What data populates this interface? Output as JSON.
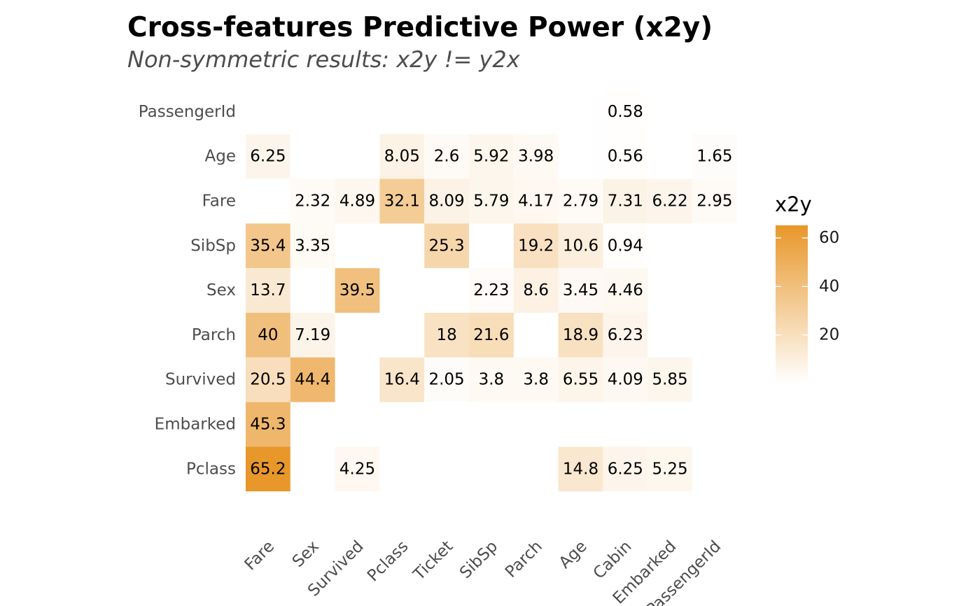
{
  "chart_data": {
    "type": "heatmap",
    "title": "Cross-features Predictive Power (x2y)",
    "subtitle": "Non-symmetric results: x2y != y2x",
    "x_categories": [
      "Fare",
      "Sex",
      "Survived",
      "Pclass",
      "Ticket",
      "SibSp",
      "Parch",
      "Age",
      "Cabin",
      "Embarked",
      "PassengerId"
    ],
    "y_categories": [
      "PassengerId",
      "Age",
      "Fare",
      "SibSp",
      "Sex",
      "Parch",
      "Survived",
      "Embarked",
      "Pclass"
    ],
    "cells": [
      {
        "x": "Cabin",
        "y": "PassengerId",
        "value": 0.58,
        "label": "0.58"
      },
      {
        "x": "Fare",
        "y": "Age",
        "value": 6.25,
        "label": "6.25"
      },
      {
        "x": "Pclass",
        "y": "Age",
        "value": 8.05,
        "label": "8.05"
      },
      {
        "x": "Ticket",
        "y": "Age",
        "value": 2.6,
        "label": "2.6"
      },
      {
        "x": "SibSp",
        "y": "Age",
        "value": 5.92,
        "label": "5.92"
      },
      {
        "x": "Parch",
        "y": "Age",
        "value": 3.98,
        "label": "3.98"
      },
      {
        "x": "Cabin",
        "y": "Age",
        "value": 0.56,
        "label": "0.56"
      },
      {
        "x": "PassengerId",
        "y": "Age",
        "value": 1.65,
        "label": "1.65"
      },
      {
        "x": "Sex",
        "y": "Fare",
        "value": 2.32,
        "label": "2.32"
      },
      {
        "x": "Survived",
        "y": "Fare",
        "value": 4.89,
        "label": "4.89"
      },
      {
        "x": "Pclass",
        "y": "Fare",
        "value": 32.1,
        "label": "32.1"
      },
      {
        "x": "Ticket",
        "y": "Fare",
        "value": 8.09,
        "label": "8.09"
      },
      {
        "x": "SibSp",
        "y": "Fare",
        "value": 5.79,
        "label": "5.79"
      },
      {
        "x": "Parch",
        "y": "Fare",
        "value": 4.17,
        "label": "4.17"
      },
      {
        "x": "Age",
        "y": "Fare",
        "value": 2.79,
        "label": "2.79"
      },
      {
        "x": "Cabin",
        "y": "Fare",
        "value": 7.31,
        "label": "7.31"
      },
      {
        "x": "Embarked",
        "y": "Fare",
        "value": 6.22,
        "label": "6.22"
      },
      {
        "x": "PassengerId",
        "y": "Fare",
        "value": 2.95,
        "label": "2.95"
      },
      {
        "x": "Fare",
        "y": "SibSp",
        "value": 35.4,
        "label": "35.4"
      },
      {
        "x": "Sex",
        "y": "SibSp",
        "value": 3.35,
        "label": "3.35"
      },
      {
        "x": "Ticket",
        "y": "SibSp",
        "value": 25.3,
        "label": "25.3"
      },
      {
        "x": "Parch",
        "y": "SibSp",
        "value": 19.2,
        "label": "19.2"
      },
      {
        "x": "Age",
        "y": "SibSp",
        "value": 10.6,
        "label": "10.6"
      },
      {
        "x": "Cabin",
        "y": "SibSp",
        "value": 0.94,
        "label": "0.94"
      },
      {
        "x": "Fare",
        "y": "Sex",
        "value": 13.7,
        "label": "13.7"
      },
      {
        "x": "Survived",
        "y": "Sex",
        "value": 39.5,
        "label": "39.5"
      },
      {
        "x": "SibSp",
        "y": "Sex",
        "value": 2.23,
        "label": "2.23"
      },
      {
        "x": "Parch",
        "y": "Sex",
        "value": 8.6,
        "label": "8.6"
      },
      {
        "x": "Age",
        "y": "Sex",
        "value": 3.45,
        "label": "3.45"
      },
      {
        "x": "Cabin",
        "y": "Sex",
        "value": 4.46,
        "label": "4.46"
      },
      {
        "x": "Fare",
        "y": "Parch",
        "value": 40,
        "label": "40"
      },
      {
        "x": "Sex",
        "y": "Parch",
        "value": 7.19,
        "label": "7.19"
      },
      {
        "x": "Ticket",
        "y": "Parch",
        "value": 18,
        "label": "18"
      },
      {
        "x": "SibSp",
        "y": "Parch",
        "value": 21.6,
        "label": "21.6"
      },
      {
        "x": "Age",
        "y": "Parch",
        "value": 18.9,
        "label": "18.9"
      },
      {
        "x": "Cabin",
        "y": "Parch",
        "value": 6.23,
        "label": "6.23"
      },
      {
        "x": "Fare",
        "y": "Survived",
        "value": 20.5,
        "label": "20.5"
      },
      {
        "x": "Sex",
        "y": "Survived",
        "value": 44.4,
        "label": "44.4"
      },
      {
        "x": "Pclass",
        "y": "Survived",
        "value": 16.4,
        "label": "16.4"
      },
      {
        "x": "Ticket",
        "y": "Survived",
        "value": 2.05,
        "label": "2.05"
      },
      {
        "x": "SibSp",
        "y": "Survived",
        "value": 3.8,
        "label": "3.8"
      },
      {
        "x": "Parch",
        "y": "Survived",
        "value": 3.8,
        "label": "3.8"
      },
      {
        "x": "Age",
        "y": "Survived",
        "value": 6.55,
        "label": "6.55"
      },
      {
        "x": "Cabin",
        "y": "Survived",
        "value": 4.09,
        "label": "4.09"
      },
      {
        "x": "Embarked",
        "y": "Survived",
        "value": 5.85,
        "label": "5.85"
      },
      {
        "x": "Fare",
        "y": "Embarked",
        "value": 45.3,
        "label": "45.3"
      },
      {
        "x": "Fare",
        "y": "Pclass",
        "value": 65.2,
        "label": "65.2"
      },
      {
        "x": "Survived",
        "y": "Pclass",
        "value": 4.25,
        "label": "4.25"
      },
      {
        "x": "Age",
        "y": "Pclass",
        "value": 14.8,
        "label": "14.8"
      },
      {
        "x": "Cabin",
        "y": "Pclass",
        "value": 6.25,
        "label": "6.25"
      },
      {
        "x": "Embarked",
        "y": "Pclass",
        "value": 5.25,
        "label": "5.25"
      }
    ],
    "color_scale": {
      "low_color": "#ffffff",
      "high_color": "#e8972a",
      "domain": [
        0,
        65.2
      ]
    },
    "legend": {
      "title": "x2y",
      "ticks": [
        20,
        40,
        60
      ],
      "tick_labels": [
        "20",
        "40",
        "60"
      ],
      "placement": "right"
    },
    "grid": false
  }
}
